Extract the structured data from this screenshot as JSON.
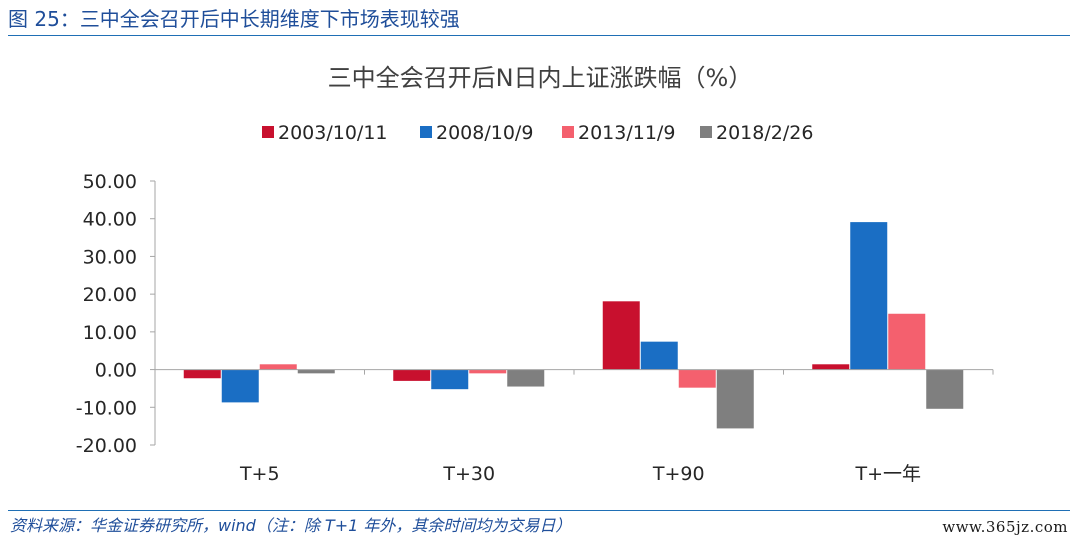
{
  "figure": {
    "label": "图 25：",
    "title": "三中全会召开后中长期维度下市场表现较强",
    "source": "资料来源：华金证券研究所，wind（注：除 T+1 年外，其余时间均为交易日）",
    "watermark": "www.365jz.com"
  },
  "chart_data": {
    "type": "bar",
    "title": "三中全会召开后N日内上证涨跌幅（%）",
    "categories": [
      "T+5",
      "T+30",
      "T+90",
      "T+一年"
    ],
    "series": [
      {
        "name": "2003/10/11",
        "color": "#c8102e",
        "values": [
          -2.3,
          -3.0,
          18.1,
          1.4
        ]
      },
      {
        "name": "2008/10/9",
        "color": "#1a6ec4",
        "values": [
          -8.7,
          -5.2,
          7.4,
          39.1
        ]
      },
      {
        "name": "2013/11/9",
        "color": "#f4606e",
        "values": [
          1.4,
          -1.0,
          -4.8,
          14.8
        ]
      },
      {
        "name": "2018/2/26",
        "color": "#7f7f7f",
        "values": [
          -1.0,
          -4.5,
          -15.6,
          -10.4
        ]
      }
    ],
    "ylim": [
      -20,
      50
    ],
    "yticks": [
      50,
      40,
      30,
      20,
      10,
      0,
      -10,
      -20
    ],
    "ytick_labels": [
      "50.00",
      "40.00",
      "30.00",
      "20.00",
      "10.00",
      "0.00",
      "-10.00",
      "-20.00"
    ],
    "xlabel": "",
    "ylabel": "",
    "legend": "top",
    "grid": false
  }
}
